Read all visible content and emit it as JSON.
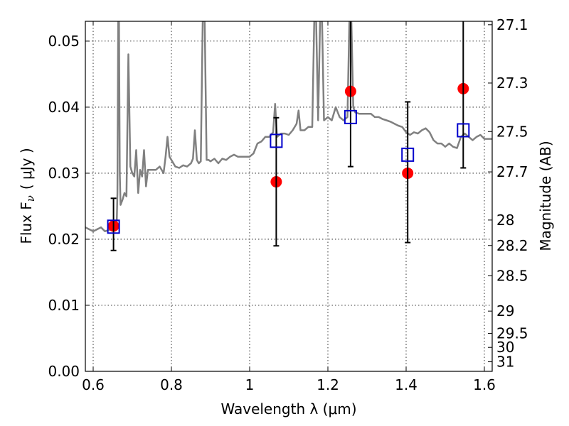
{
  "chart_data": {
    "type": "scatter",
    "title": "",
    "xlabel": "Wavelength  λ (μm)",
    "ylabel": "Flux  F",
    "ylabel_sub": "ν",
    "ylabel_unit": "( μJy )",
    "y2label": "Magnitude (AB)",
    "xlim": [
      0.58,
      1.62
    ],
    "ylim": [
      0.0,
      0.053
    ],
    "grid": true,
    "x_ticks": [
      0.6,
      0.8,
      1.0,
      1.2,
      1.4,
      1.6
    ],
    "x_tick_labels": [
      "0.6",
      "0.8",
      "1",
      "1.2",
      "1.4",
      "1.6"
    ],
    "y_ticks": [
      0.0,
      0.01,
      0.02,
      0.03,
      0.04,
      0.05
    ],
    "y_tick_labels": [
      "0.00",
      "0.01",
      "0.02",
      "0.03",
      "0.04",
      "0.05"
    ],
    "y2_ticks": [
      27.1,
      27.3,
      27.5,
      27.7,
      28,
      28.2,
      28.5,
      29,
      29.5,
      30,
      31
    ],
    "y2_tick_labels": [
      "27.1",
      "27.3",
      "27.5",
      "27.7",
      "28",
      "28.2",
      "28.5",
      "29",
      "29.5",
      "30",
      "31"
    ],
    "series": [
      {
        "kind": "line",
        "color": "#808080",
        "x": [
          0.58,
          0.6,
          0.62,
          0.63,
          0.645,
          0.65,
          0.655,
          0.66,
          0.662,
          0.664,
          0.666,
          0.668,
          0.67,
          0.675,
          0.68,
          0.685,
          0.69,
          0.695,
          0.7,
          0.705,
          0.71,
          0.715,
          0.72,
          0.725,
          0.73,
          0.735,
          0.74,
          0.75,
          0.76,
          0.77,
          0.78,
          0.785,
          0.79,
          0.795,
          0.8,
          0.81,
          0.82,
          0.83,
          0.84,
          0.85,
          0.855,
          0.86,
          0.865,
          0.87,
          0.875,
          0.88,
          0.885,
          0.89,
          0.895,
          0.9,
          0.91,
          0.92,
          0.93,
          0.94,
          0.95,
          0.96,
          0.97,
          0.98,
          0.99,
          1.0,
          1.01,
          1.02,
          1.03,
          1.04,
          1.05,
          1.06,
          1.065,
          1.07,
          1.08,
          1.09,
          1.1,
          1.11,
          1.12,
          1.125,
          1.13,
          1.14,
          1.15,
          1.16,
          1.165,
          1.17,
          1.175,
          1.18,
          1.185,
          1.19,
          1.2,
          1.21,
          1.22,
          1.23,
          1.24,
          1.25,
          1.255,
          1.26,
          1.265,
          1.27,
          1.28,
          1.29,
          1.3,
          1.31,
          1.32,
          1.33,
          1.34,
          1.35,
          1.36,
          1.37,
          1.38,
          1.39,
          1.4,
          1.41,
          1.42,
          1.43,
          1.44,
          1.45,
          1.46,
          1.47,
          1.48,
          1.49,
          1.5,
          1.51,
          1.52,
          1.53,
          1.54,
          1.55,
          1.56,
          1.57,
          1.58,
          1.59,
          1.6,
          1.62
        ],
        "y": [
          0.0218,
          0.0212,
          0.0218,
          0.0212,
          0.0215,
          0.022,
          0.022,
          0.022,
          0.027,
          0.053,
          0.053,
          0.03,
          0.0252,
          0.026,
          0.027,
          0.0265,
          0.048,
          0.031,
          0.03,
          0.0295,
          0.0335,
          0.027,
          0.0305,
          0.0295,
          0.0335,
          0.028,
          0.0305,
          0.0305,
          0.0305,
          0.031,
          0.03,
          0.0325,
          0.0355,
          0.0325,
          0.032,
          0.031,
          0.0308,
          0.0312,
          0.031,
          0.0315,
          0.0322,
          0.0365,
          0.032,
          0.0315,
          0.0318,
          0.053,
          0.053,
          0.032,
          0.032,
          0.0318,
          0.0322,
          0.0315,
          0.0322,
          0.032,
          0.0325,
          0.0328,
          0.0325,
          0.0325,
          0.0325,
          0.0325,
          0.033,
          0.0345,
          0.0348,
          0.0355,
          0.0355,
          0.0362,
          0.0405,
          0.0355,
          0.036,
          0.036,
          0.0358,
          0.0365,
          0.0375,
          0.0395,
          0.0365,
          0.0365,
          0.037,
          0.037,
          0.053,
          0.053,
          0.038,
          0.053,
          0.053,
          0.038,
          0.0385,
          0.038,
          0.04,
          0.0385,
          0.038,
          0.0385,
          0.053,
          0.053,
          0.04,
          0.0392,
          0.039,
          0.039,
          0.039,
          0.039,
          0.0385,
          0.0385,
          0.0382,
          0.038,
          0.0378,
          0.0375,
          0.0372,
          0.037,
          0.0362,
          0.0358,
          0.0362,
          0.036,
          0.0365,
          0.0368,
          0.0362,
          0.035,
          0.0345,
          0.0345,
          0.034,
          0.0345,
          0.034,
          0.0338,
          0.0355,
          0.036,
          0.0355,
          0.035,
          0.0355,
          0.0358,
          0.0352,
          0.0352
        ]
      },
      {
        "kind": "points",
        "marker": "circle",
        "color": "#ff0000",
        "x": [
          0.652,
          1.068,
          1.258,
          1.404,
          1.546
        ],
        "y": [
          0.022,
          0.0287,
          0.0424,
          0.03,
          0.0428
        ]
      },
      {
        "kind": "points",
        "marker": "square-open",
        "color": "#0000cc",
        "x": [
          0.652,
          1.068,
          1.258,
          1.404,
          1.546
        ],
        "y": [
          0.0219,
          0.0349,
          0.0385,
          0.0328,
          0.0365
        ],
        "yerr_low": [
          0.0183,
          0.019,
          0.031,
          0.0195,
          0.0308
        ],
        "yerr_high": [
          0.0262,
          0.0384,
          0.053,
          0.0408,
          0.053
        ]
      }
    ]
  }
}
